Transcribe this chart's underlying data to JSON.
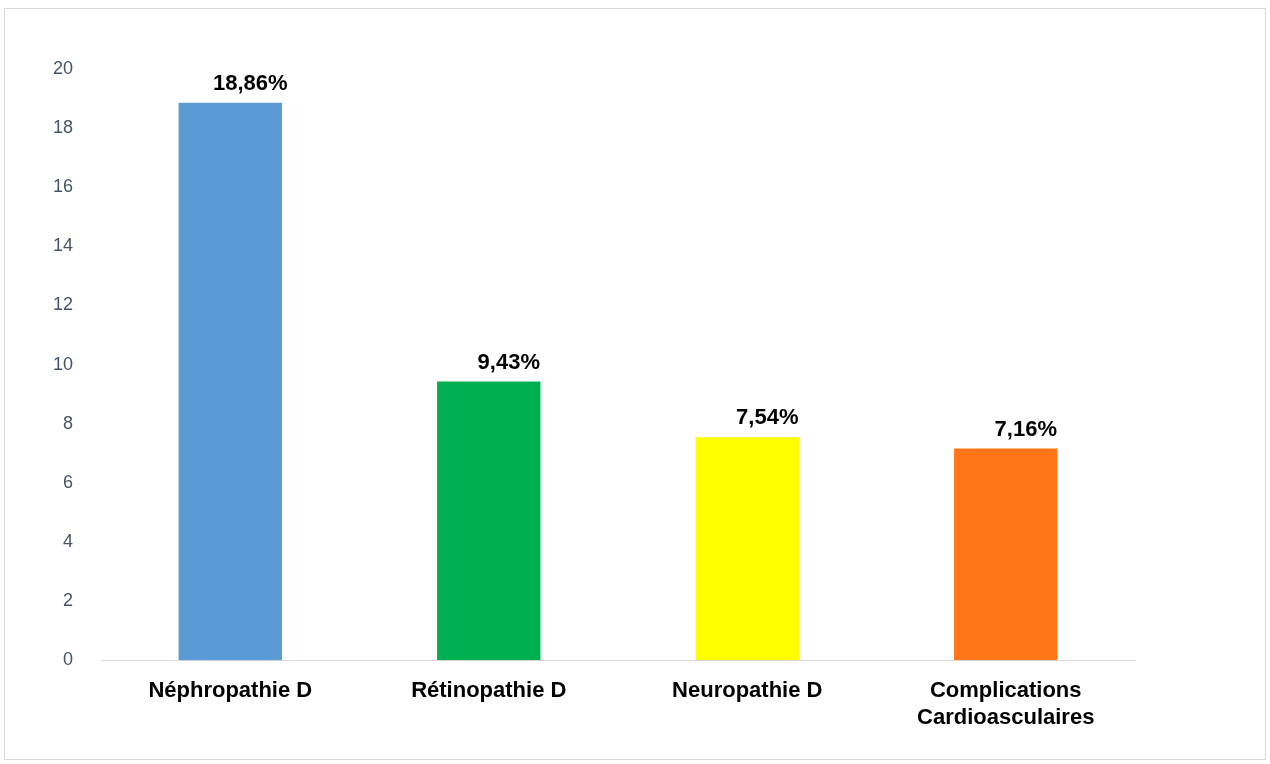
{
  "chart_data": {
    "type": "bar",
    "categories": [
      "Néphropathie D",
      "Rétinopathie D",
      "Neuropathie D",
      "Complications Cardioasculaires"
    ],
    "values": [
      18.86,
      9.43,
      7.54,
      7.16
    ],
    "colors": [
      "#5b9bd5",
      "#00b050",
      "#ffff00",
      "#ff7518"
    ],
    "value_labels": [
      "18,86%",
      "9,43%",
      "7,54%",
      "7,16%"
    ],
    "ylim": [
      0,
      20
    ],
    "yticks": [
      0,
      2,
      4,
      6,
      8,
      10,
      12,
      14,
      16,
      18,
      20
    ],
    "grid": false,
    "legend": false
  }
}
